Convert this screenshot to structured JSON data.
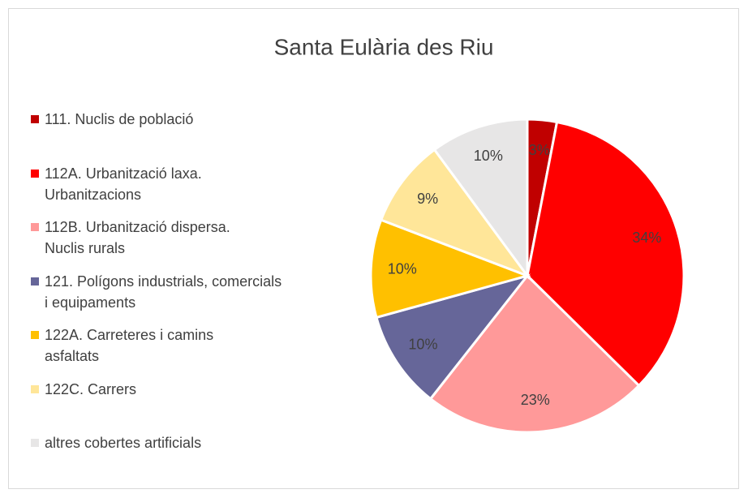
{
  "chart_data": {
    "type": "pie",
    "title": "Santa Eulària des Riu",
    "categories": [
      "111. Nuclis de població",
      "112A. Urbanització laxa. Urbanitzacions",
      "112B. Urbanització dispersa. Nuclis rurals",
      "121. Polígons industrials, comercials i equipaments",
      "122A. Carreteres i camins asfaltats",
      "122C. Carrers",
      "altres cobertes artificials"
    ],
    "values": [
      3,
      34,
      23,
      10,
      10,
      9,
      10
    ],
    "value_labels": [
      "3%",
      "34%",
      "23%",
      "10%",
      "10%",
      "9%",
      "10%"
    ],
    "colors": [
      "#c00000",
      "#ff0000",
      "#ff9999",
      "#666699",
      "#ffc000",
      "#ffe699",
      "#e7e6e6"
    ],
    "legend": "left"
  }
}
